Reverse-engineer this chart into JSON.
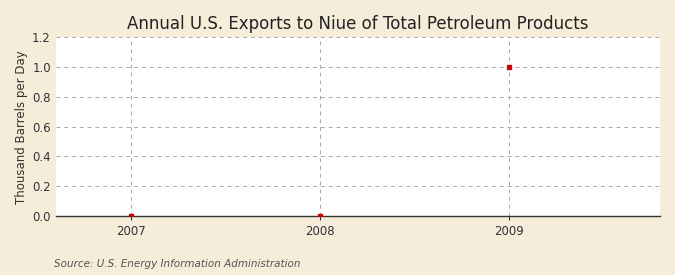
{
  "title": "Annual U.S. Exports to Niue of Total Petroleum Products",
  "ylabel": "Thousand Barrels per Day",
  "source": "Source: U.S. Energy Information Administration",
  "background_color": "#f5edda",
  "plot_bg_color": "#ffffff",
  "x_values": [
    2007,
    2008,
    2009
  ],
  "y_values": [
    0.0,
    0.0,
    1.0
  ],
  "xlim": [
    2006.6,
    2009.8
  ],
  "ylim": [
    0.0,
    1.2
  ],
  "yticks": [
    0.0,
    0.2,
    0.4,
    0.6,
    0.8,
    1.0,
    1.2
  ],
  "xticks": [
    2007,
    2008,
    2009
  ],
  "marker_color": "#cc0000",
  "marker": "s",
  "marker_size": 3.5,
  "grid_color": "#aaaaaa",
  "grid_linestyle": "--",
  "title_fontsize": 12,
  "label_fontsize": 8.5,
  "tick_fontsize": 8.5,
  "source_fontsize": 7.5,
  "spine_color": "#333333",
  "tick_color": "#333333"
}
